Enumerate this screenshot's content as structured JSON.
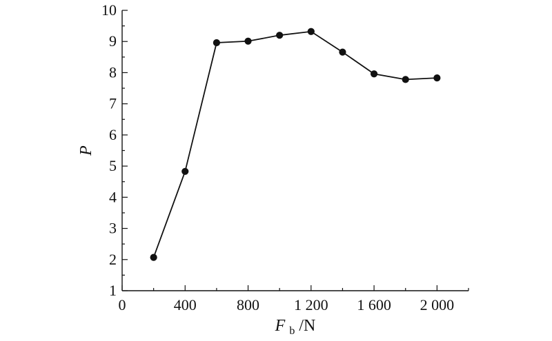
{
  "chart_data": {
    "type": "line",
    "title": "",
    "xlabel": {
      "main": "F",
      "subscript": "b",
      "unit": "/N"
    },
    "ylabel": "P",
    "xlim": [
      0,
      2200
    ],
    "ylim": [
      1,
      10
    ],
    "x_ticks": [
      0,
      400,
      800,
      1200,
      1600,
      2000
    ],
    "x_tick_labels": [
      "0",
      "400",
      "800",
      "1 200",
      "1 600",
      "2 000"
    ],
    "y_ticks": [
      1,
      2,
      3,
      4,
      5,
      6,
      7,
      8,
      9,
      10
    ],
    "y_tick_labels": [
      "1",
      "2",
      "3",
      "4",
      "5",
      "6",
      "7",
      "8",
      "9",
      "10"
    ],
    "grid": false,
    "series": [
      {
        "x": [
          200,
          400,
          600,
          800,
          1000,
          1200,
          1400,
          1600,
          1800,
          2000
        ],
        "y": [
          2.07,
          4.83,
          8.96,
          9.01,
          9.2,
          9.32,
          8.66,
          7.96,
          7.78,
          7.83
        ],
        "color": "#111111",
        "marker": "circle"
      }
    ]
  }
}
